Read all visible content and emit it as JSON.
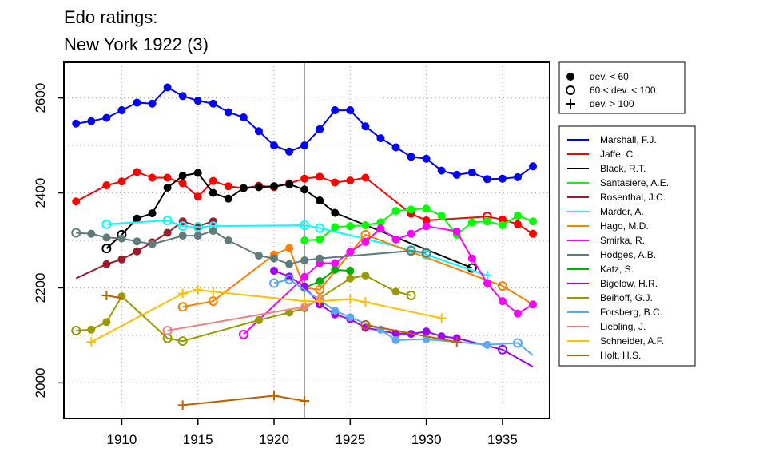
{
  "chart_data": {
    "type": "line",
    "title": "Edo ratings:",
    "subtitle": "New York 1922 (3)",
    "xlabel": "",
    "ylabel": "",
    "xlim": [
      1906.2,
      1938.1
    ],
    "ylim": [
      1925,
      2675
    ],
    "x_ticks": [
      1910,
      1915,
      1920,
      1925,
      1930,
      1935
    ],
    "y_ticks": [
      2000,
      2200,
      2400,
      2600
    ],
    "grid": true,
    "reference_line_x": 1922,
    "marker_legend": {
      "position": "top-right",
      "items": [
        {
          "symbol": "filled-circle",
          "label": "dev. < 60"
        },
        {
          "symbol": "open-circle",
          "label": "60 < dev. < 100"
        },
        {
          "symbol": "plus",
          "label": "dev. > 100"
        }
      ]
    },
    "legend_position": "right",
    "series": [
      {
        "name": "Marshall, F.J.",
        "color": "#0000ff",
        "x": [
          1907,
          1908,
          1909,
          1910,
          1911,
          1912,
          1913,
          1914,
          1915,
          1916,
          1917,
          1918,
          1919,
          1920,
          1921,
          1922,
          1923,
          1924,
          1925,
          1926,
          1927,
          1928,
          1929,
          1930,
          1931,
          1932,
          1933,
          1934,
          1935,
          1936,
          1937
        ],
        "y": [
          2546,
          2551,
          2558,
          2574,
          2590,
          2588,
          2622,
          2604,
          2594,
          2588,
          2570,
          2559,
          2530,
          2500,
          2487,
          2500,
          2534,
          2574,
          2574,
          2540,
          2515,
          2496,
          2476,
          2472,
          2447,
          2438,
          2443,
          2429,
          2430,
          2433,
          2456
        ],
        "m": [
          "f",
          "f",
          "f",
          "f",
          "f",
          "f",
          "f",
          "f",
          "f",
          "f",
          "f",
          "f",
          "f",
          "f",
          "f",
          "f",
          "f",
          "f",
          "f",
          "f",
          "f",
          "f",
          "f",
          "f",
          "f",
          "f",
          "f",
          "f",
          "f",
          "f",
          "f"
        ]
      },
      {
        "name": "Jaffe, C.",
        "color": "#ff0000",
        "x": [
          1907,
          1909,
          1910,
          1911,
          1912,
          1913,
          1914,
          1915,
          1916,
          1917,
          1918,
          1919,
          1920,
          1921,
          1922,
          1923,
          1924,
          1925,
          1926,
          1929,
          1930,
          1934,
          1935,
          1936,
          1937
        ],
        "y": [
          2382,
          2416,
          2424,
          2444,
          2432,
          2432,
          2420,
          2392,
          2425,
          2414,
          2410,
          2415,
          2412,
          2420,
          2430,
          2434,
          2422,
          2426,
          2432,
          2356,
          2342,
          2350,
          2344,
          2334,
          2314
        ],
        "m": [
          "f",
          "f",
          "f",
          "f",
          "f",
          "f",
          "f",
          "f",
          "f",
          "f",
          "f",
          "f",
          "f",
          "f",
          "f",
          "f",
          "f",
          "f",
          "f",
          "f",
          "f",
          "o",
          "f",
          "f",
          "f"
        ]
      },
      {
        "name": "Black, R.T.",
        "color": "#000000",
        "x": [
          1909,
          1910,
          1911,
          1912,
          1913,
          1914,
          1915,
          1916,
          1917,
          1918,
          1919,
          1920,
          1921,
          1922,
          1923,
          1924,
          1933
        ],
        "y": [
          2283,
          2312,
          2346,
          2357,
          2411,
          2436,
          2442,
          2400,
          2388,
          2410,
          2412,
          2414,
          2418,
          2407,
          2384,
          2358,
          2242
        ],
        "m": [
          "o",
          "o",
          "f",
          "f",
          "f",
          "f",
          "f",
          "f",
          "f",
          "f",
          "f",
          "f",
          "f",
          "f",
          "f",
          "f",
          "o"
        ]
      },
      {
        "name": "Santasiere, A.E.",
        "color": "#00ff00",
        "x": [
          1922,
          1923,
          1924,
          1925,
          1926,
          1927,
          1928,
          1929,
          1930,
          1931,
          1932,
          1933,
          1934,
          1935,
          1936,
          1937
        ],
        "y": [
          2300,
          2302,
          2328,
          2330,
          2332,
          2338,
          2362,
          2365,
          2367,
          2352,
          2312,
          2338,
          2340,
          2332,
          2352,
          2340
        ],
        "m": [
          "f",
          "f",
          "f",
          "f",
          "f",
          "f",
          "f",
          "f",
          "f",
          "f",
          "f",
          "f",
          "f",
          "f",
          "f",
          "f"
        ]
      },
      {
        "name": "Rosenthal, J.C.",
        "color": "#9b1b2b",
        "x": [
          1907,
          1909,
          1910,
          1911,
          1912,
          1913,
          1914,
          1915,
          1916
        ],
        "y": [
          2220,
          2250,
          2260,
          2277,
          2296,
          2316,
          2340,
          2330,
          2340
        ],
        "m": [
          "n",
          "f",
          "f",
          "f",
          "f",
          "f",
          "f",
          "f",
          "f"
        ]
      },
      {
        "name": "Marder, A.",
        "color": "#00ffff",
        "x": [
          1909,
          1913,
          1914,
          1915,
          1916,
          1922,
          1923,
          1929,
          1930,
          1934
        ],
        "y": [
          2334,
          2342,
          2330,
          2328,
          2330,
          2332,
          2326,
          2280,
          2270,
          2226
        ],
        "m": [
          "o",
          "o",
          "o",
          "o",
          "o",
          "o",
          "o",
          "o",
          "o",
          "p"
        ]
      },
      {
        "name": "Hago, M.D.",
        "color": "#ff7f00",
        "x": [
          1914,
          1916,
          1920,
          1921,
          1922,
          1923,
          1926,
          1935,
          1937
        ],
        "y": [
          2160,
          2172,
          2270,
          2284,
          2200,
          2196,
          2312,
          2204,
          2165
        ],
        "m": [
          "o",
          "o",
          "f",
          "f",
          "f",
          "o",
          "o",
          "o",
          "n"
        ]
      },
      {
        "name": "Smirka, R.",
        "color": "#ff00ff",
        "x": [
          1918,
          1922,
          1923,
          1924,
          1925,
          1926,
          1927,
          1928,
          1929,
          1930,
          1932,
          1933,
          1934,
          1935,
          1936,
          1937
        ],
        "y": [
          2102,
          2223,
          2252,
          2252,
          2276,
          2297,
          2325,
          2302,
          2314,
          2330,
          2319,
          2262,
          2210,
          2172,
          2146,
          2165
        ],
        "m": [
          "o",
          "f",
          "f",
          "f",
          "f",
          "f",
          "f",
          "f",
          "f",
          "f",
          "f",
          "f",
          "f",
          "f",
          "f",
          "f"
        ]
      },
      {
        "name": "Hodges, A.B.",
        "color": "#607b7b",
        "x": [
          1907,
          1908,
          1909,
          1910,
          1911,
          1912,
          1914,
          1915,
          1916,
          1917,
          1919,
          1920,
          1921,
          1922,
          1923,
          1929,
          1930
        ],
        "y": [
          2316,
          2314,
          2306,
          2304,
          2298,
          2292,
          2310,
          2310,
          2320,
          2300,
          2268,
          2262,
          2250,
          2258,
          2262,
          2278,
          2274
        ],
        "m": [
          "o",
          "f",
          "f",
          "f",
          "f",
          "f",
          "f",
          "f",
          "f",
          "f",
          "f",
          "f",
          "f",
          "f",
          "f",
          "o",
          "o"
        ]
      },
      {
        "name": "Katz, S.",
        "color": "#00b000",
        "x": [
          1922,
          1923,
          1924,
          1925
        ],
        "y": [
          2200,
          2214,
          2238,
          2236
        ],
        "m": [
          "f",
          "f",
          "f",
          "f"
        ]
      },
      {
        "name": "Bigelow, H.R.",
        "color": "#a000ff",
        "x": [
          1920,
          1921,
          1922,
          1923,
          1924,
          1925,
          1926,
          1928,
          1929,
          1930,
          1931,
          1932,
          1935,
          1937
        ],
        "y": [
          2236,
          2224,
          2203,
          2165,
          2144,
          2134,
          2116,
          2104,
          2103,
          2108,
          2098,
          2094,
          2070,
          2034
        ],
        "m": [
          "f",
          "f",
          "f",
          "f",
          "f",
          "f",
          "f",
          "f",
          "f",
          "f",
          "f",
          "f",
          "o",
          "n"
        ]
      },
      {
        "name": "Beihoff, G.J.",
        "color": "#9a9a00",
        "x": [
          1907,
          1908,
          1909,
          1910,
          1913,
          1914,
          1919,
          1921,
          1922,
          1925,
          1926,
          1928,
          1929
        ],
        "y": [
          2110,
          2112,
          2128,
          2182,
          2094,
          2088,
          2132,
          2148,
          2157,
          2220,
          2226,
          2192,
          2184
        ],
        "m": [
          "o",
          "f",
          "f",
          "f",
          "o",
          "o",
          "f",
          "f",
          "f",
          "f",
          "f",
          "f",
          "o"
        ]
      },
      {
        "name": "Forsberg, B.C.",
        "color": "#5aaaf0",
        "x": [
          1920,
          1921,
          1924,
          1925,
          1927,
          1928,
          1930,
          1934,
          1936,
          1937
        ],
        "y": [
          2210,
          2218,
          2152,
          2138,
          2112,
          2090,
          2092,
          2080,
          2084,
          2058
        ],
        "m": [
          "o",
          "o",
          "f",
          "f",
          "f",
          "f",
          "f",
          "f",
          "o",
          "n"
        ]
      },
      {
        "name": "Liebling, J.",
        "color": "#f08080",
        "x": [
          1913,
          1922,
          1923
        ],
        "y": [
          2110,
          2160,
          2176
        ],
        "m": [
          "o",
          "f",
          "f"
        ]
      },
      {
        "name": "Schneider, A.F.",
        "color": "#ffc000",
        "x": [
          1908,
          1914,
          1915,
          1916,
          1922,
          1923,
          1925,
          1926,
          1931
        ],
        "y": [
          2086,
          2188,
          2196,
          2192,
          2172,
          2172,
          2176,
          2170,
          2136
        ],
        "m": [
          "p",
          "p",
          "p",
          "p",
          "p",
          "p",
          "p",
          "p",
          "p"
        ]
      },
      {
        "name": "Holt, H.S.",
        "color": "#c06000",
        "x": [
          1914,
          1920,
          1922
        ],
        "y": [
          1953,
          1973,
          1962
        ],
        "m": [
          "p",
          "p",
          "p"
        ]
      },
      {
        "name": "Holt, H.S.",
        "color": "#c06000",
        "legend": false,
        "x": [
          1909,
          1910
        ],
        "y": [
          2184,
          2178
        ],
        "m": [
          "p",
          "n"
        ]
      },
      {
        "name": "Holt, H.S.",
        "color": "#c06000",
        "legend": false,
        "x": [
          1926,
          1932
        ],
        "y": [
          2122,
          2086
        ],
        "m": [
          "o",
          "p"
        ]
      }
    ]
  }
}
